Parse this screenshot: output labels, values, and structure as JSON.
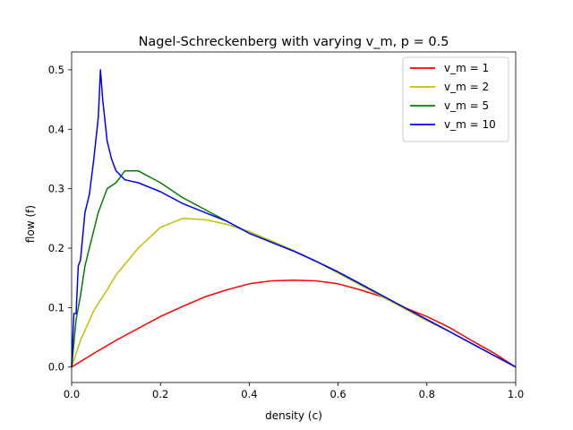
{
  "chart_data": {
    "type": "line",
    "title": "Nagel-Schreckenberg with varying v_m, p = 0.5",
    "xlabel": "density (c)",
    "ylabel": "flow (f)",
    "xlim": [
      0.0,
      1.0
    ],
    "ylim": [
      -0.026,
      0.53
    ],
    "x_ticks": [
      "0.0",
      "0.2",
      "0.4",
      "0.6",
      "0.8",
      "1.0"
    ],
    "y_ticks": [
      "0.0",
      "0.1",
      "0.2",
      "0.3",
      "0.4",
      "0.5"
    ],
    "grid": false,
    "legend_position": "top-right",
    "series": [
      {
        "name": "v_m = 1",
        "color": "#ff0000",
        "x": [
          0.0,
          0.05,
          0.1,
          0.15,
          0.2,
          0.25,
          0.3,
          0.35,
          0.4,
          0.45,
          0.5,
          0.55,
          0.6,
          0.65,
          0.7,
          0.75,
          0.8,
          0.85,
          0.9,
          0.95,
          1.0
        ],
        "y": [
          0.0,
          0.023,
          0.045,
          0.065,
          0.085,
          0.102,
          0.118,
          0.13,
          0.14,
          0.145,
          0.146,
          0.145,
          0.14,
          0.13,
          0.118,
          0.1,
          0.085,
          0.067,
          0.045,
          0.024,
          0.0
        ]
      },
      {
        "name": "v_m = 2",
        "color": "#bfbf00",
        "x": [
          0.0,
          0.02,
          0.05,
          0.08,
          0.1,
          0.15,
          0.2,
          0.25,
          0.3,
          0.35,
          0.4,
          0.45,
          0.5,
          0.55,
          0.6,
          0.65,
          0.7,
          0.75,
          0.8,
          0.85,
          0.9,
          0.95,
          1.0
        ],
        "y": [
          0.0,
          0.045,
          0.095,
          0.13,
          0.155,
          0.2,
          0.235,
          0.25,
          0.248,
          0.24,
          0.228,
          0.212,
          0.196,
          0.178,
          0.158,
          0.138,
          0.118,
          0.098,
          0.078,
          0.06,
          0.04,
          0.02,
          0.0
        ]
      },
      {
        "name": "v_m = 5",
        "color": "#008000",
        "x": [
          0.0,
          0.01,
          0.02,
          0.03,
          0.04,
          0.05,
          0.06,
          0.07,
          0.08,
          0.1,
          0.12,
          0.15,
          0.2,
          0.25,
          0.3,
          0.35,
          0.4,
          0.45,
          0.5,
          0.55,
          0.6,
          0.65,
          0.7,
          0.75,
          0.8,
          0.85,
          0.9,
          0.95,
          1.0
        ],
        "y": [
          0.0,
          0.08,
          0.12,
          0.17,
          0.2,
          0.23,
          0.26,
          0.28,
          0.3,
          0.31,
          0.33,
          0.33,
          0.31,
          0.285,
          0.265,
          0.245,
          0.225,
          0.21,
          0.195,
          0.178,
          0.16,
          0.14,
          0.12,
          0.1,
          0.08,
          0.06,
          0.04,
          0.02,
          0.0
        ]
      },
      {
        "name": "v_m = 10",
        "color": "#0000ff",
        "x": [
          0.0,
          0.005,
          0.01,
          0.015,
          0.02,
          0.03,
          0.04,
          0.05,
          0.06,
          0.065,
          0.07,
          0.08,
          0.09,
          0.1,
          0.12,
          0.15,
          0.2,
          0.25,
          0.3,
          0.35,
          0.4,
          0.45,
          0.5,
          0.55,
          0.6,
          0.65,
          0.7,
          0.75,
          0.8,
          0.85,
          0.9,
          0.95,
          1.0
        ],
        "y": [
          0.0,
          0.09,
          0.09,
          0.17,
          0.18,
          0.26,
          0.29,
          0.35,
          0.42,
          0.5,
          0.45,
          0.38,
          0.35,
          0.33,
          0.315,
          0.31,
          0.295,
          0.275,
          0.26,
          0.245,
          0.225,
          0.21,
          0.195,
          0.178,
          0.16,
          0.14,
          0.12,
          0.1,
          0.08,
          0.06,
          0.04,
          0.02,
          0.0
        ]
      }
    ]
  }
}
